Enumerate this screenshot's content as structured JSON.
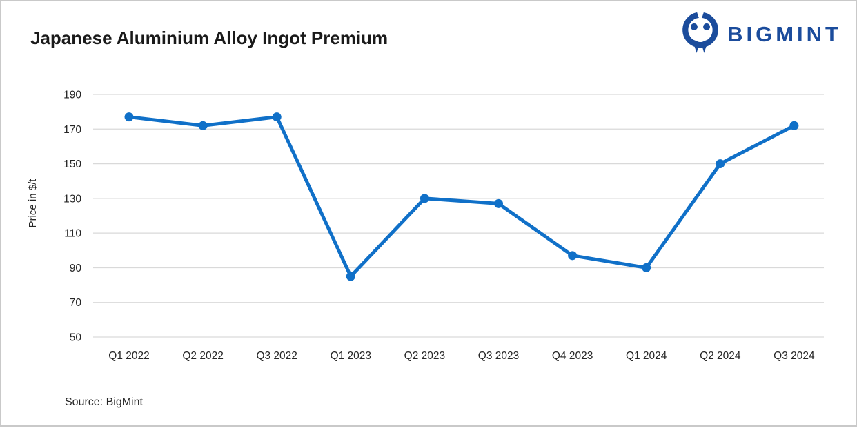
{
  "header": {
    "title": "Japanese Aluminium Alloy Ingot Premium",
    "logo_text": "BIGMINT"
  },
  "footer": {
    "source": "Source: BigMint"
  },
  "colors": {
    "line": "#1070C8",
    "logo": "#1B4C9C",
    "grid": "#D9D9D9",
    "text": "#262626",
    "border": "#C9C9C9"
  },
  "chart_data": {
    "type": "line",
    "title": "Japanese Aluminium Alloy Ingot Premium",
    "xlabel": "",
    "ylabel": "Price in $/t",
    "ylim": [
      50,
      190
    ],
    "yticks": [
      50,
      70,
      90,
      110,
      130,
      150,
      170,
      190
    ],
    "grid": "horizontal",
    "legend_position": "none",
    "categories": [
      "Q1 2022",
      "Q2 2022",
      "Q3 2022",
      "Q1 2023",
      "Q2 2023",
      "Q3 2023",
      "Q4 2023",
      "Q1 2024",
      "Q2 2024",
      "Q3 2024"
    ],
    "series": [
      {
        "name": "Japanese Aluminium Alloy Ingot Premium ($/t)",
        "values": [
          177,
          172,
          177,
          85,
          130,
          127,
          97,
          90,
          150,
          172
        ]
      }
    ],
    "source": "Source: BigMint"
  }
}
